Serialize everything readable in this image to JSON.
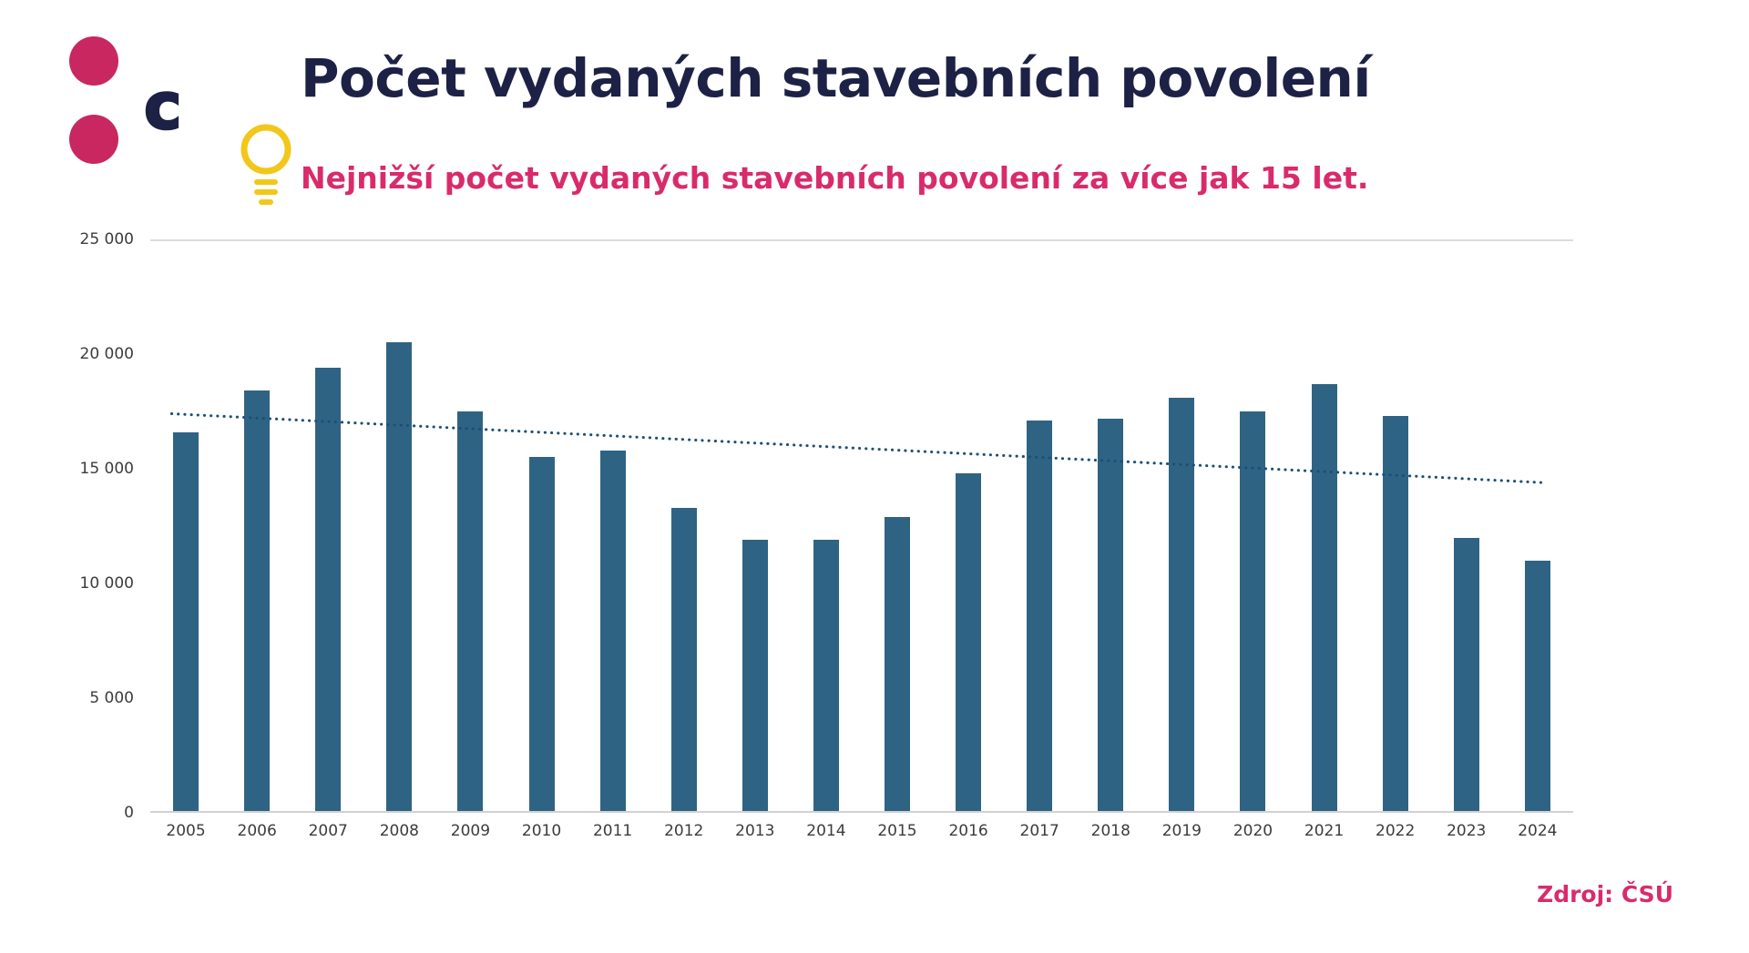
{
  "logo": {
    "letter": "c",
    "dot_color": "#c9275f",
    "letter_color": "#1d2145"
  },
  "header": {
    "title": "Počet vydaných stavebních povolení",
    "subtitle": "Nejnižší počet vydaných stavebních povolení za více jak 15 let.",
    "title_color": "#1d2145",
    "subtitle_color": "#d92b6b",
    "lightbulb_color": "#f2c71b"
  },
  "footer": {
    "source": "Zdroj: ČSÚ",
    "source_color": "#d92b6b"
  },
  "chart_data": {
    "type": "bar",
    "title": "Počet vydaných stavebních povolení",
    "xlabel": "",
    "ylabel": "",
    "categories": [
      "2005",
      "2006",
      "2007",
      "2008",
      "2009",
      "2010",
      "2011",
      "2012",
      "2013",
      "2014",
      "2015",
      "2016",
      "2017",
      "2018",
      "2019",
      "2020",
      "2021",
      "2022",
      "2023",
      "2024"
    ],
    "values": [
      16600,
      18400,
      19400,
      20500,
      17500,
      15500,
      15800,
      13300,
      11900,
      11900,
      12900,
      14800,
      17100,
      17200,
      18100,
      17500,
      18700,
      17300,
      12000,
      11000
    ],
    "ylim": [
      0,
      25000
    ],
    "ytick_labels": [
      "25 000",
      "20 000",
      "15 000",
      "10 000",
      "5 000",
      "0"
    ],
    "bar_color": "#2f6384",
    "grid": "top-line-and-baseline-only",
    "legend": "none",
    "trendline": {
      "style": "dotted",
      "color": "#1d4f76",
      "start": 17400,
      "end": 14400
    }
  }
}
